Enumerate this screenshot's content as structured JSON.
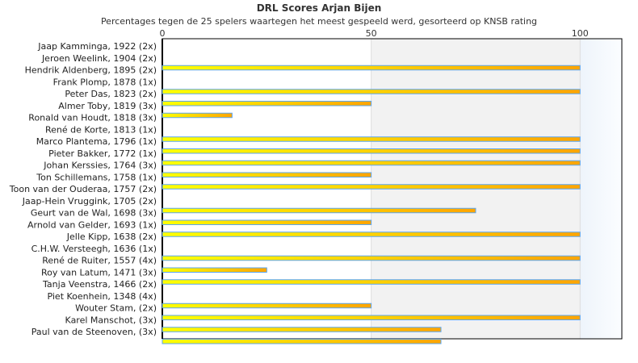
{
  "chart_data": {
    "type": "bar",
    "orientation": "horizontal",
    "title": "DRL Scores Arjan Bijen",
    "subtitle": "Percentages tegen de 25 spelers waartegen het meest gespeeld werd, gesorteerd op KNSB rating",
    "xlim": [
      0,
      110
    ],
    "xticks": [
      "0",
      "50",
      "100"
    ],
    "categories": [
      "Jaap Kamminga, 1922 (2x)",
      "Jeroen Weelink, 1904 (2x)",
      "Hendrik Aldenberg, 1895 (2x)",
      "Frank Plomp, 1878 (1x)",
      "Peter Das, 1823 (2x)",
      "Almer Toby, 1819 (3x)",
      "Ronald van Houdt, 1818 (3x)",
      "René de Korte, 1813 (1x)",
      "Marco Plantema, 1796 (1x)",
      "Pieter Bakker, 1772 (1x)",
      "Johan Kerssies, 1764 (3x)",
      "Ton Schillemans, 1758 (1x)",
      "Toon van der Ouderaa, 1757 (2x)",
      "Jaap-Hein Vruggink, 1705 (2x)",
      "Geurt van de Wal, 1698 (3x)",
      "Arnold van Gelder, 1693 (1x)",
      "Jelle Kipp, 1638 (2x)",
      "C.H.W. Versteegh, 1636 (1x)",
      "René de Ruiter, 1557 (4x)",
      "Roy van Latum, 1471 (3x)",
      "Tanja Veenstra, 1466 (2x)",
      "Piet Koenhein, 1348 (4x)",
      "Wouter Stam,  (2x)",
      "Karel Manschot,  (3x)",
      "Paul van de Steenoven,  (3x)"
    ],
    "values": [
      0,
      100,
      0,
      100,
      50,
      16.7,
      0,
      100,
      100,
      100,
      50,
      100,
      0,
      75,
      50,
      100,
      0,
      100,
      25,
      100,
      0,
      50,
      100,
      66.7,
      66.7
    ],
    "colors": {
      "bar_start": "#ffff00",
      "bar_end": "#ffa500",
      "bar_border": "#5aa5f0",
      "band_mid": "#f2f2f2",
      "band_high": "#f5f9fd"
    }
  }
}
